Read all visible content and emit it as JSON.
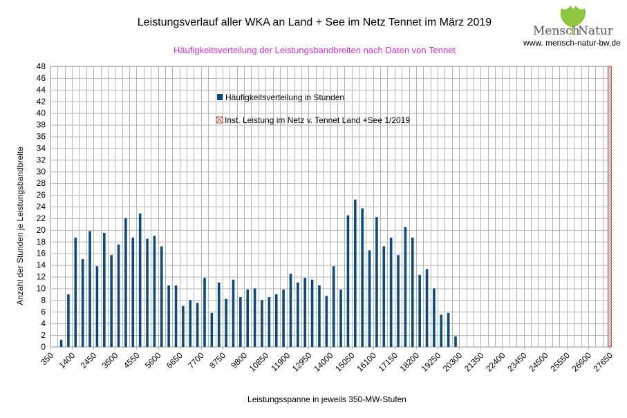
{
  "chart_data": {
    "type": "bar",
    "title": "Leistungsverlauf aller WKA an Land + See im Netz Tennet im März 2019",
    "subtitle": "Häufigkeitsverteilung der Leistungsbandbreiten nach Daten von Tennet",
    "xlabel": "Leistungsspanne in jeweils 350-MW-Stufen",
    "ylabel": "Anzahl der Stunden je Leistungsbandbreite",
    "ylim": [
      0,
      48
    ],
    "ytick_step": 2,
    "grid": true,
    "legend_position": "top-left",
    "x_tick_labels": [
      "350",
      "1400",
      "2450",
      "3500",
      "4550",
      "5600",
      "6650",
      "7700",
      "8750",
      "9800",
      "10850",
      "11900",
      "12950",
      "14000",
      "15050",
      "16100",
      "17150",
      "18200",
      "19250",
      "20300",
      "21350",
      "22400",
      "23450",
      "24500",
      "25550",
      "26600",
      "27650"
    ],
    "x_step_mw": 350,
    "x_start_mw": 350,
    "series": [
      {
        "name": "Häufigkeitsverteilung in Stunden",
        "color": "#0b4a80",
        "values": [
          1.2,
          9,
          18.7,
          15,
          19.8,
          13.8,
          19.5,
          15.7,
          17.5,
          22,
          18.7,
          22.8,
          18.5,
          19,
          17.2,
          10.5,
          10.5,
          7,
          8,
          7.5,
          11.8,
          5.8,
          11,
          8.2,
          11.5,
          8.5,
          9.8,
          10,
          8,
          8.5,
          9,
          9.8,
          12.5,
          11,
          11.8,
          11.5,
          10.5,
          8.7,
          13.8,
          9.8,
          22.5,
          25.2,
          23.7,
          16.5,
          22.2,
          17.2,
          18.7,
          15.7,
          20.5,
          18.7,
          12.3,
          13.3,
          10,
          5.5,
          5.8,
          1.8
        ]
      },
      {
        "name": "Inst. Leistung im Netz v. Tennet  Land +See 1/2019",
        "color": "#c0504d",
        "at_mw": 27650,
        "value": 48
      }
    ]
  },
  "branding": {
    "logo_left": "Mensch",
    "logo_right": "Natur",
    "url": "www. mensch-natur-bw.de",
    "leaf_icon_color": "#8dc63f",
    "subtitle_color": "#cc33cc"
  }
}
